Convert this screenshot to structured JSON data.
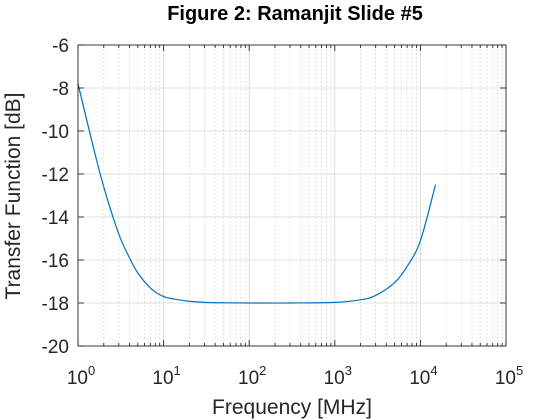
{
  "chart_data": {
    "type": "line",
    "title": "Figure 2: Ramanjit Slide #5",
    "xlabel": "Frequency [MHz]",
    "ylabel": "Transfer Function [dB]",
    "xscale": "log",
    "xlim": [
      1,
      100000
    ],
    "ylim": [
      -20,
      -6
    ],
    "grid": true,
    "minor_grid": true,
    "legend": "none",
    "x_ticks": [
      {
        "value": 1,
        "base": "10",
        "exp": "0"
      },
      {
        "value": 10,
        "base": "10",
        "exp": "1"
      },
      {
        "value": 100,
        "base": "10",
        "exp": "2"
      },
      {
        "value": 1000,
        "base": "10",
        "exp": "3"
      },
      {
        "value": 10000,
        "base": "10",
        "exp": "4"
      },
      {
        "value": 100000,
        "base": "10",
        "exp": "5"
      }
    ],
    "y_ticks": [
      -6,
      -8,
      -10,
      -12,
      -14,
      -16,
      -18,
      -20
    ],
    "series": [
      {
        "color": "#0072bd",
        "x": [
          1,
          1.5,
          2,
          3,
          4,
          5,
          7,
          10,
          15,
          20,
          30,
          50,
          100,
          300,
          1000,
          2000,
          3000,
          5000,
          7000,
          10000,
          15000
        ],
        "y": [
          -7.8,
          -10.7,
          -12.6,
          -14.8,
          -15.9,
          -16.6,
          -17.3,
          -17.7,
          -17.85,
          -17.92,
          -17.97,
          -17.99,
          -18.0,
          -18.0,
          -17.97,
          -17.85,
          -17.65,
          -17.05,
          -16.3,
          -15.1,
          -12.5
        ]
      }
    ]
  }
}
